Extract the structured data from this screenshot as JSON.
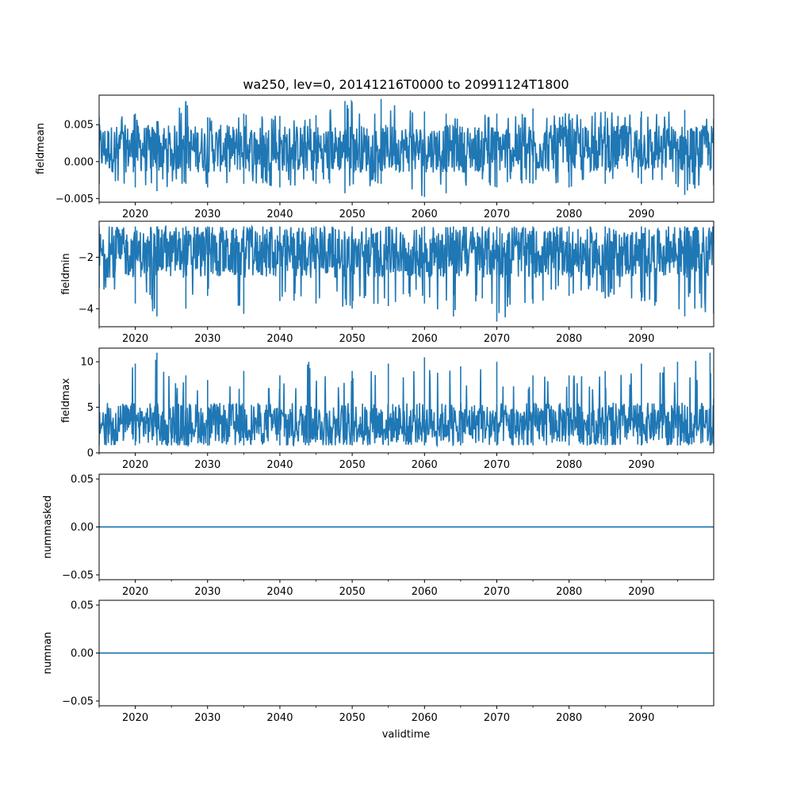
{
  "figure": {
    "title": "wa250, lev=0, 20141216T0000 to 20991124T1800",
    "xlabel": "validtime",
    "line_color": "#1f77b4"
  },
  "chart_data": [
    {
      "type": "line",
      "ylabel": "fieldmean",
      "xlim": [
        2015.0,
        2100.0
      ],
      "ylim": [
        -0.0055,
        0.009
      ],
      "x_ticks": [
        "2020",
        "2030",
        "2040",
        "2050",
        "2060",
        "2070",
        "2080",
        "2090"
      ],
      "y_ticks": [
        "−0.005",
        "0.000",
        "0.005"
      ],
      "y_tick_values": [
        -0.005,
        0.0,
        0.005
      ],
      "series": [
        {
          "x": [
            2015,
            2020,
            2023,
            2027,
            2030,
            2035,
            2040,
            2045,
            2049,
            2054,
            2060,
            2063,
            2070,
            2075,
            2080,
            2085,
            2090,
            2096,
            2100
          ],
          "band_low": [
            -0.003,
            -0.0035,
            -0.004,
            -0.003,
            -0.0035,
            -0.003,
            -0.0035,
            -0.003,
            -0.0043,
            -0.003,
            -0.0048,
            -0.0043,
            -0.0035,
            -0.003,
            -0.0035,
            -0.003,
            -0.003,
            -0.0045,
            -0.0032
          ],
          "band_high": [
            0.006,
            0.0065,
            0.0055,
            0.0082,
            0.006,
            0.0065,
            0.0062,
            0.0063,
            0.0082,
            0.0085,
            0.0068,
            0.0065,
            0.0065,
            0.0072,
            0.0065,
            0.0068,
            0.0068,
            0.007,
            0.0058
          ],
          "typical_low": -0.0015,
          "typical_high": 0.005
        }
      ]
    },
    {
      "type": "line",
      "ylabel": "fieldmin",
      "xlim": [
        2015.0,
        2100.0
      ],
      "ylim": [
        -4.7,
        -0.6
      ],
      "x_ticks": [
        "2020",
        "2030",
        "2040",
        "2050",
        "2060",
        "2070",
        "2080",
        "2090"
      ],
      "y_ticks": [
        "−4",
        "−2"
      ],
      "y_tick_values": [
        -4,
        -2
      ],
      "series": [
        {
          "x": [
            2015,
            2020,
            2023,
            2027,
            2030,
            2035,
            2040,
            2045,
            2050,
            2055,
            2060,
            2064,
            2068,
            2070,
            2075,
            2080,
            2085,
            2090,
            2096,
            2100
          ],
          "band_low": [
            -3.2,
            -3.8,
            -4.3,
            -4.0,
            -3.5,
            -4.2,
            -3.7,
            -3.8,
            -4.0,
            -3.9,
            -3.8,
            -4.3,
            -3.6,
            -4.5,
            -3.8,
            -3.5,
            -3.6,
            -3.7,
            -4.3,
            -4.2
          ],
          "band_high": [
            -0.8,
            -0.8,
            -0.8,
            -0.8,
            -0.8,
            -0.8,
            -0.8,
            -0.8,
            -0.8,
            -0.8,
            -0.8,
            -0.8,
            -0.8,
            -0.8,
            -0.8,
            -0.8,
            -0.8,
            -0.8,
            -0.8,
            -0.8
          ],
          "typical_low": -2.8,
          "typical_high": -0.9
        }
      ]
    },
    {
      "type": "line",
      "ylabel": "fieldmax",
      "xlim": [
        2015.0,
        2100.0
      ],
      "ylim": [
        0,
        11.5
      ],
      "x_ticks": [
        "2020",
        "2030",
        "2040",
        "2050",
        "2060",
        "2070",
        "2080",
        "2090"
      ],
      "y_ticks": [
        "0",
        "5",
        "10"
      ],
      "y_tick_values": [
        0,
        5,
        10
      ],
      "series": [
        {
          "x": [
            2015,
            2020,
            2023,
            2027,
            2030,
            2035,
            2040,
            2044,
            2050,
            2055,
            2060,
            2065,
            2070,
            2075,
            2080,
            2085,
            2090,
            2095,
            2099.5,
            2100
          ],
          "band_low": [
            0.8,
            0.8,
            0.8,
            0.8,
            0.8,
            0.8,
            0.8,
            0.8,
            0.8,
            0.8,
            0.8,
            0.8,
            0.8,
            0.8,
            0.8,
            0.8,
            0.8,
            0.8,
            0.8,
            0.8
          ],
          "band_high": [
            7.5,
            9.8,
            11.0,
            8.5,
            8.0,
            9.0,
            8.5,
            10.0,
            9.0,
            9.8,
            10.5,
            9.5,
            10.0,
            8.5,
            8.5,
            9.0,
            9.8,
            10.0,
            11.0,
            6.0
          ],
          "typical_low": 1.0,
          "typical_high": 5.5
        }
      ]
    },
    {
      "type": "line",
      "ylabel": "nummasked",
      "xlim": [
        2015.0,
        2100.0
      ],
      "ylim": [
        -0.055,
        0.055
      ],
      "x_ticks": [
        "2020",
        "2030",
        "2040",
        "2050",
        "2060",
        "2070",
        "2080",
        "2090"
      ],
      "y_ticks": [
        "−0.05",
        "0.00",
        "0.05"
      ],
      "y_tick_values": [
        -0.05,
        0.0,
        0.05
      ],
      "series": [
        {
          "x": [
            2015,
            2100
          ],
          "y": [
            0,
            0
          ]
        }
      ]
    },
    {
      "type": "line",
      "ylabel": "numnan",
      "xlim": [
        2015.0,
        2100.0
      ],
      "ylim": [
        -0.055,
        0.055
      ],
      "x_ticks": [
        "2020",
        "2030",
        "2040",
        "2050",
        "2060",
        "2070",
        "2080",
        "2090"
      ],
      "y_ticks": [
        "−0.05",
        "0.00",
        "0.05"
      ],
      "y_tick_values": [
        -0.05,
        0.0,
        0.05
      ],
      "series": [
        {
          "x": [
            2015,
            2100
          ],
          "y": [
            0,
            0
          ]
        }
      ]
    }
  ]
}
